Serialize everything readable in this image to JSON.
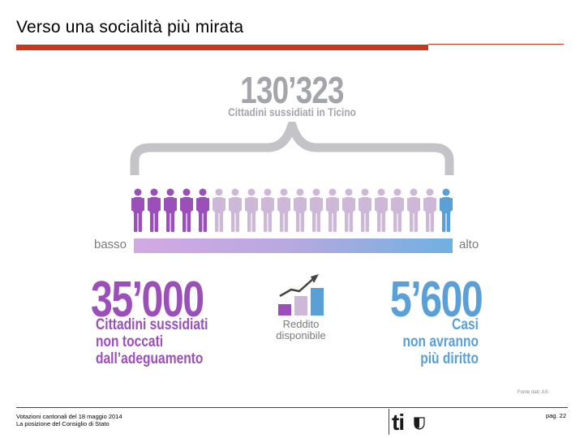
{
  "slide": {
    "title": "Verso una socialità più mirata"
  },
  "infographic": {
    "total_number": "130’323",
    "total_label": "Cittadini sussidiati in Ticino",
    "scale_low": "basso",
    "scale_high": "alto",
    "left_number": "35’000",
    "left_label_lines": [
      "Cittadini sussidiati",
      "non toccati",
      "dall’adeguamento"
    ],
    "income_label_lines": [
      "Reddito",
      "disponibile"
    ],
    "right_number": "5’600",
    "right_label_lines": [
      "Casi",
      "non avranno",
      "più diritto"
    ],
    "source": "Fonte dati: AS",
    "person_count": 20,
    "colors": {
      "purple": "#9b4fb8",
      "lilac": "#cdb8d8",
      "blue": "#5a9fd6",
      "grey": "#a4a4ab"
    }
  },
  "footer": {
    "line1": "Votazioni cantonali del 18 maggio 2014",
    "line2": "La posizione del Consiglio di Stato",
    "logo_text": "ti",
    "page": "pag. 22"
  }
}
